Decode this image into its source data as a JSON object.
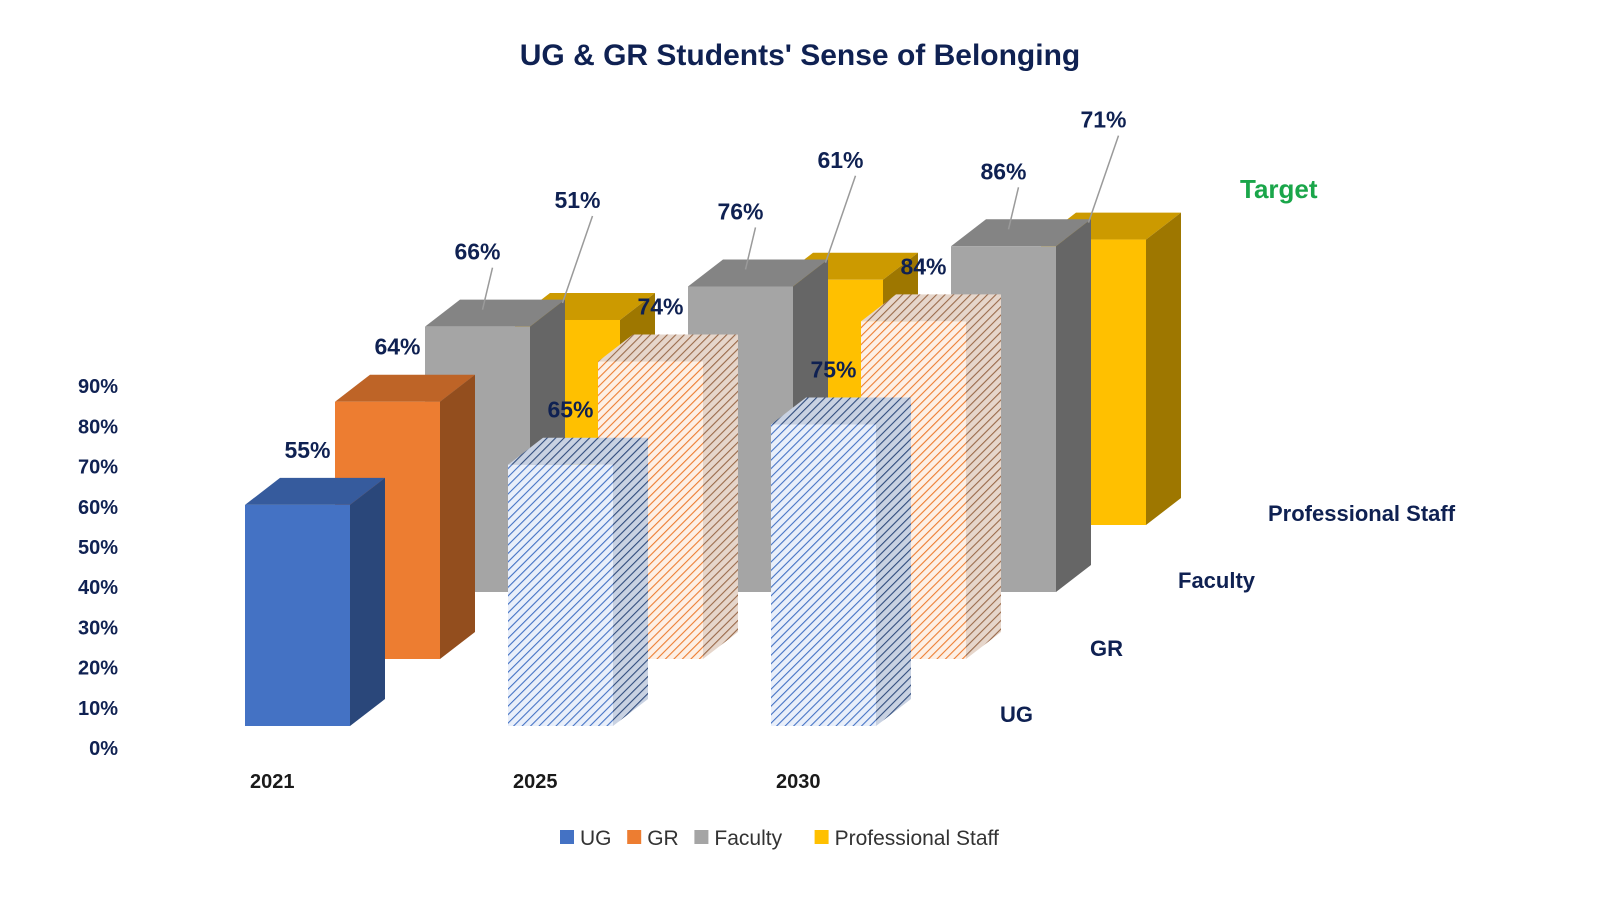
{
  "chart_data": {
    "type": "bar",
    "title": "UG & GR Students' Sense of Belonging",
    "categories": [
      "2021",
      "2025",
      "2030"
    ],
    "series": [
      {
        "name": "UG",
        "values": [
          55,
          65,
          75
        ],
        "color": "#4472c4"
      },
      {
        "name": "GR",
        "values": [
          64,
          74,
          84
        ],
        "color": "#ed7d31"
      },
      {
        "name": "Faculty",
        "values": [
          66,
          76,
          86
        ],
        "color": "#a5a5a5"
      },
      {
        "name": "Professional Staff",
        "values": [
          51,
          61,
          71
        ],
        "color": "#ffc000"
      }
    ],
    "data_labels": {
      "UG": [
        "55%",
        "65%",
        "75%"
      ],
      "GR": [
        "64%",
        "74%",
        "84%"
      ],
      "Faculty": [
        "66%",
        "76%",
        "86%"
      ],
      "Professional Staff": [
        "51%",
        "61%",
        "71%"
      ]
    },
    "yticks": [
      "0%",
      "10%",
      "20%",
      "30%",
      "40%",
      "50%",
      "60%",
      "70%",
      "80%",
      "90%"
    ],
    "ylim": [
      0,
      90
    ],
    "depth_labels": [
      "UG",
      "GR",
      "Faculty",
      "Professional Staff"
    ],
    "target_category": "2030",
    "projected_categories": [
      "2025",
      "2030"
    ],
    "annotation": "Target",
    "legend": {
      "position": "bottom",
      "entries": [
        "UG",
        "GR",
        "Faculty",
        "Professional Staff"
      ]
    },
    "grid": false,
    "style": "3d-column"
  }
}
